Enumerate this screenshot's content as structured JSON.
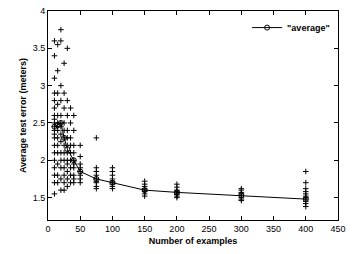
{
  "chart_data": {
    "type": "scatter",
    "x_label": "Number of examples",
    "y_label": "Average test error (meters)",
    "xlim": [
      0,
      450
    ],
    "ylim": [
      1.2,
      4
    ],
    "xticks": [
      0,
      50,
      100,
      150,
      200,
      250,
      300,
      350,
      400,
      450
    ],
    "yticks": [
      1.5,
      2,
      2.5,
      3,
      3.5,
      4
    ],
    "grid": false,
    "legend": "top right",
    "series": [
      {
        "type": "scatter",
        "color": "#000000",
        "marker": "plus",
        "x": [
          10,
          10,
          10,
          10,
          10,
          10,
          10,
          10,
          10,
          10,
          10,
          10,
          10,
          10,
          10,
          10,
          10,
          10,
          10,
          10,
          15,
          15,
          15,
          15,
          15,
          15,
          15,
          15,
          15,
          15,
          15,
          15,
          15,
          15,
          20,
          20,
          20,
          20,
          20,
          20,
          20,
          20,
          20,
          20,
          20,
          20,
          20,
          20,
          25,
          25,
          25,
          25,
          25,
          25,
          25,
          25,
          25,
          25,
          25,
          25,
          25,
          30,
          30,
          30,
          30,
          30,
          30,
          30,
          30,
          30,
          30,
          30,
          30,
          35,
          35,
          35,
          35,
          35,
          35,
          35,
          35,
          35,
          40,
          40,
          40,
          40,
          40,
          40,
          40,
          40,
          40,
          40,
          50,
          50,
          50,
          50,
          50,
          50,
          50,
          50,
          75,
          75,
          75,
          75,
          75,
          75,
          75,
          75,
          75,
          100,
          100,
          100,
          100,
          100,
          100,
          100,
          100,
          100,
          150,
          150,
          150,
          150,
          150,
          150,
          150,
          150,
          200,
          200,
          200,
          200,
          200,
          200,
          200,
          200,
          300,
          300,
          300,
          300,
          300,
          300,
          300,
          300,
          400,
          400,
          400,
          400,
          400,
          400,
          400,
          400,
          400,
          400,
          400
        ],
        "values": [
          3.6,
          3.4,
          3.1,
          2.9,
          2.8,
          2.7,
          2.6,
          2.55,
          2.5,
          2.45,
          2.4,
          2.35,
          2.3,
          2.2,
          2.1,
          2.0,
          1.9,
          1.8,
          1.7,
          1.55,
          3.55,
          3.2,
          2.9,
          2.75,
          2.6,
          2.5,
          2.45,
          2.4,
          2.3,
          2.2,
          2.1,
          1.95,
          1.8,
          1.7,
          3.75,
          3.6,
          3.0,
          2.8,
          2.6,
          2.5,
          2.45,
          2.35,
          2.25,
          2.1,
          2.0,
          1.9,
          1.75,
          1.6,
          3.3,
          2.9,
          2.7,
          2.5,
          2.4,
          2.3,
          2.2,
          2.1,
          2.0,
          1.9,
          1.8,
          1.7,
          1.6,
          3.5,
          2.8,
          2.6,
          2.4,
          2.3,
          2.2,
          2.1,
          2.0,
          1.95,
          1.85,
          1.75,
          1.65,
          2.7,
          2.5,
          2.3,
          2.2,
          2.1,
          2.0,
          1.9,
          1.8,
          1.7,
          2.6,
          2.4,
          2.2,
          2.1,
          2.0,
          1.95,
          1.9,
          1.8,
          1.75,
          1.7,
          2.2,
          2.05,
          1.95,
          1.9,
          1.85,
          1.8,
          1.75,
          1.7,
          2.3,
          1.9,
          1.85,
          1.8,
          1.75,
          1.72,
          1.7,
          1.65,
          1.62,
          1.9,
          1.85,
          1.8,
          1.75,
          1.72,
          1.7,
          1.68,
          1.65,
          1.62,
          1.72,
          1.68,
          1.65,
          1.62,
          1.6,
          1.58,
          1.55,
          1.52,
          1.68,
          1.64,
          1.6,
          1.58,
          1.56,
          1.54,
          1.52,
          1.5,
          1.62,
          1.6,
          1.57,
          1.55,
          1.53,
          1.5,
          1.48,
          1.46,
          1.85,
          1.7,
          1.62,
          1.58,
          1.55,
          1.52,
          1.5,
          1.48,
          1.45,
          1.42,
          1.38
        ]
      },
      {
        "name": "\"average\"",
        "type": "line",
        "color": "#000000",
        "marker": "circle",
        "x": [
          10,
          15,
          20,
          25,
          30,
          40,
          50,
          75,
          100,
          150,
          200,
          300,
          400
        ],
        "values": [
          2.45,
          2.47,
          2.5,
          2.3,
          2.15,
          2.0,
          1.85,
          1.75,
          1.7,
          1.6,
          1.57,
          1.53,
          1.48
        ]
      }
    ]
  }
}
